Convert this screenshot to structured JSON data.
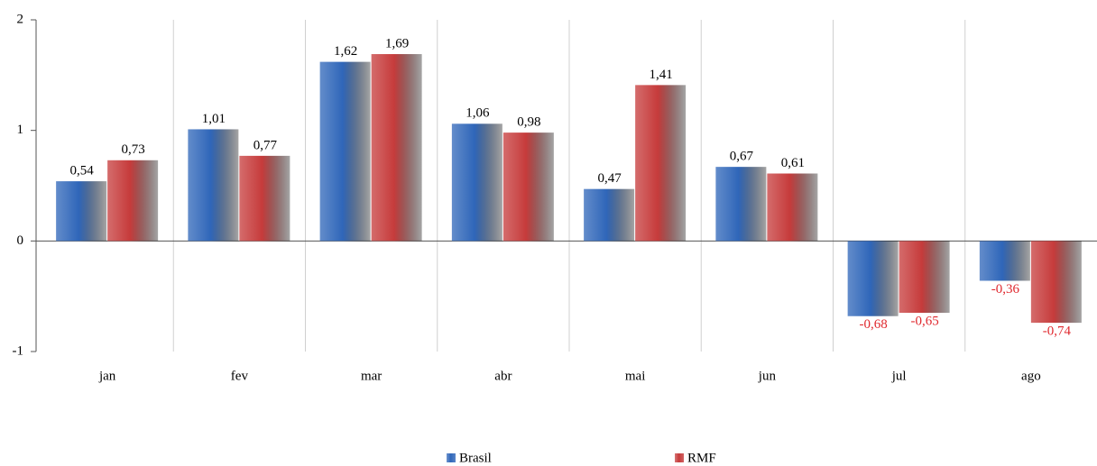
{
  "chart_data": {
    "type": "bar",
    "categories": [
      "jan",
      "fev",
      "mar",
      "abr",
      "mai",
      "jun",
      "jul",
      "ago"
    ],
    "series": [
      {
        "name": "Brasil",
        "color": "#2f66b9",
        "values": [
          0.54,
          1.01,
          1.62,
          1.06,
          0.47,
          0.67,
          -0.68,
          -0.36
        ],
        "value_labels": [
          "0,54",
          "1,01",
          "1,62",
          "1,06",
          "0,47",
          "0,67",
          "-0,68",
          "-0,36"
        ]
      },
      {
        "name": "RMF",
        "color": "#c63b3b",
        "values": [
          0.73,
          0.77,
          1.69,
          0.98,
          1.41,
          0.61,
          -0.65,
          -0.74
        ],
        "value_labels": [
          "0,73",
          "0,77",
          "1,69",
          "0,98",
          "1,41",
          "0,61",
          "-0,65",
          "-0,74"
        ]
      }
    ],
    "ylim": [
      -1,
      2
    ],
    "yticks": [
      -1,
      0,
      1,
      2
    ],
    "legend": "bottom"
  }
}
